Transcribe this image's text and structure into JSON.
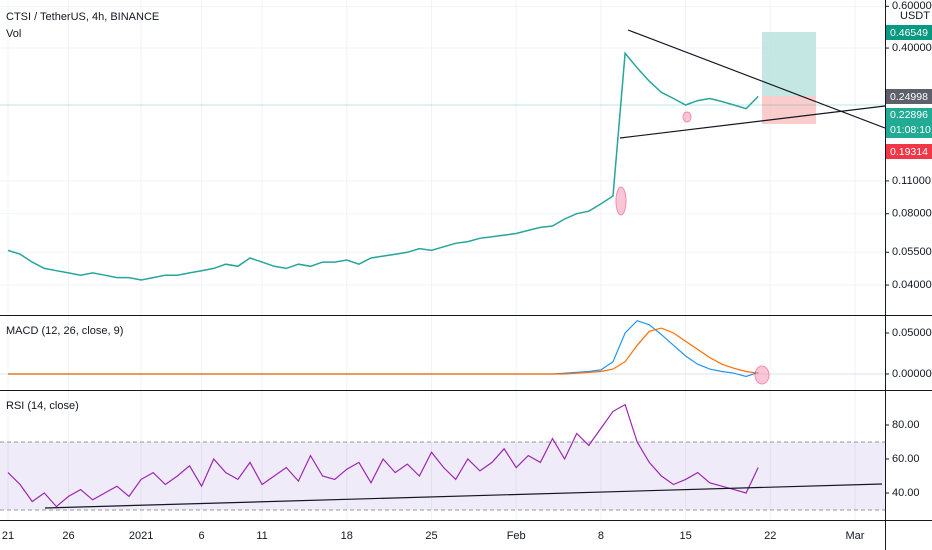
{
  "header": {
    "title": "CTSI / TetherUS, 4h, BINANCE",
    "volume": "Vol",
    "currency": "USDT"
  },
  "price_labels": {
    "target": "0.46549",
    "last": "0.24998",
    "current": "0.22896",
    "countdown": "01:08:10",
    "stop": "0.19314"
  },
  "chart_data": [
    {
      "type": "line",
      "log_scale": true,
      "grid": true,
      "ylim": [
        0.0299,
        0.638
      ],
      "yticks": [
        {
          "value": 0.6,
          "label": "0.60000"
        },
        {
          "value": 0.4,
          "label": "0.40000"
        },
        {
          "value": 0.11,
          "label": "0.11000"
        },
        {
          "value": 0.08,
          "label": "0.08000"
        },
        {
          "value": 0.055,
          "label": "0.05500"
        },
        {
          "value": 0.04,
          "label": "0.04000"
        }
      ],
      "x": [
        0,
        1,
        2,
        3,
        4,
        5,
        6,
        7,
        8,
        9,
        10,
        11,
        12,
        13,
        14,
        15,
        16,
        17,
        18,
        19,
        20,
        21,
        22,
        23,
        24,
        25,
        26,
        27,
        28,
        29,
        30,
        31,
        32,
        33,
        34,
        35,
        36,
        37,
        38,
        39,
        40,
        41,
        42,
        43,
        44,
        45,
        46,
        47,
        48,
        49,
        50,
        51,
        52,
        53,
        54,
        55,
        56,
        57,
        58,
        59,
        60,
        61,
        62
      ],
      "series": [
        {
          "color": "#26a69a",
          "values": [
            0.056,
            0.054,
            0.05,
            0.047,
            0.046,
            0.045,
            0.044,
            0.045,
            0.044,
            0.043,
            0.043,
            0.042,
            0.043,
            0.044,
            0.044,
            0.045,
            0.046,
            0.047,
            0.049,
            0.048,
            0.052,
            0.05,
            0.048,
            0.047,
            0.049,
            0.048,
            0.05,
            0.05,
            0.051,
            0.049,
            0.052,
            0.053,
            0.054,
            0.055,
            0.057,
            0.056,
            0.058,
            0.06,
            0.061,
            0.063,
            0.064,
            0.065,
            0.066,
            0.068,
            0.07,
            0.071,
            0.076,
            0.08,
            0.082,
            0.088,
            0.095,
            0.38,
            0.33,
            0.29,
            0.26,
            0.245,
            0.23,
            0.24,
            0.245,
            0.238,
            0.23,
            0.222,
            0.25
          ]
        }
      ]
    },
    {
      "type": "line",
      "title": "MACD (12, 26, close, 9)",
      "ylim": [
        -0.0195,
        0.0707
      ],
      "yticks": [
        {
          "value": 0.05,
          "label": "0.05000"
        },
        {
          "value": 0,
          "label": "0.00000"
        }
      ],
      "x": [
        0,
        1,
        2,
        3,
        4,
        5,
        6,
        7,
        8,
        9,
        10,
        11,
        12,
        13,
        14,
        15,
        16,
        17,
        18,
        19,
        20,
        21,
        22,
        23,
        24,
        25,
        26,
        27,
        28,
        29,
        30,
        31,
        32,
        33,
        34,
        35,
        36,
        37,
        38,
        39,
        40,
        41,
        42,
        43,
        44,
        45,
        46,
        47,
        48,
        49,
        50,
        51,
        52,
        53,
        54,
        55,
        56,
        57,
        58,
        59,
        60,
        61,
        62
      ],
      "series": [
        {
          "color": "#2196f3",
          "values": [
            0,
            0,
            0,
            0,
            0,
            0,
            0,
            0,
            0,
            0,
            0,
            0,
            0,
            0,
            0,
            0,
            0,
            0,
            0,
            0,
            0,
            0,
            0,
            0,
            0,
            0,
            0,
            0,
            0,
            0,
            0,
            0,
            0,
            0,
            0,
            0,
            0,
            0,
            0,
            0,
            0,
            0,
            0,
            0,
            0,
            0,
            0.001,
            0.002,
            0.003,
            0.005,
            0.015,
            0.05,
            0.065,
            0.06,
            0.048,
            0.035,
            0.022,
            0.012,
            0.006,
            0.003,
            0.001,
            -0.003,
            0.002
          ]
        },
        {
          "color": "#ff6d00",
          "values": [
            0,
            0,
            0,
            0,
            0,
            0,
            0,
            0,
            0,
            0,
            0,
            0,
            0,
            0,
            0,
            0,
            0,
            0,
            0,
            0,
            0,
            0,
            0,
            0,
            0,
            0,
            0,
            0,
            0,
            0,
            0,
            0,
            0,
            0,
            0,
            0,
            0,
            0,
            0,
            0,
            0,
            0,
            0,
            0,
            0,
            0,
            0,
            0.001,
            0.002,
            0.003,
            0.006,
            0.015,
            0.035,
            0.052,
            0.056,
            0.05,
            0.04,
            0.03,
            0.02,
            0.012,
            0.007,
            0.003,
            0.001
          ]
        }
      ]
    },
    {
      "type": "line",
      "title": "RSI (14, close)",
      "ylim": [
        24.1,
        100
      ],
      "band": [
        30,
        70
      ],
      "band_color": "#7e57c2",
      "yticks": [
        {
          "value": 80,
          "label": "80.00"
        },
        {
          "value": 60,
          "label": "60.00"
        },
        {
          "value": 40,
          "label": "40.00"
        }
      ],
      "xlim": [
        -0.66,
        72.48
      ],
      "xticks": [
        {
          "value": 0,
          "label": "21"
        },
        {
          "value": 5,
          "label": "26"
        },
        {
          "value": 11,
          "label": "2021"
        },
        {
          "value": 16,
          "label": "6"
        },
        {
          "value": 21,
          "label": "11"
        },
        {
          "value": 28,
          "label": "18"
        },
        {
          "value": 35,
          "label": "25"
        },
        {
          "value": 42,
          "label": "Feb"
        },
        {
          "value": 49,
          "label": "8"
        },
        {
          "value": 56,
          "label": "15"
        },
        {
          "value": 63,
          "label": "22"
        },
        {
          "value": 70,
          "label": "Mar"
        }
      ],
      "x": [
        0,
        1,
        2,
        3,
        4,
        5,
        6,
        7,
        8,
        9,
        10,
        11,
        12,
        13,
        14,
        15,
        16,
        17,
        18,
        19,
        20,
        21,
        22,
        23,
        24,
        25,
        26,
        27,
        28,
        29,
        30,
        31,
        32,
        33,
        34,
        35,
        36,
        37,
        38,
        39,
        40,
        41,
        42,
        43,
        44,
        45,
        46,
        47,
        48,
        49,
        50,
        51,
        52,
        53,
        54,
        55,
        56,
        57,
        58,
        59,
        60,
        61,
        62
      ],
      "series": [
        {
          "color": "#9c27b0",
          "values": [
            52,
            45,
            35,
            40,
            32,
            38,
            42,
            36,
            40,
            44,
            38,
            48,
            52,
            45,
            50,
            56,
            44,
            60,
            52,
            48,
            58,
            45,
            50,
            55,
            47,
            62,
            50,
            48,
            54,
            58,
            46,
            60,
            52,
            57,
            50,
            64,
            55,
            48,
            60,
            53,
            58,
            66,
            55,
            62,
            58,
            72,
            60,
            75,
            68,
            78,
            88,
            92,
            70,
            58,
            50,
            45,
            48,
            52,
            46,
            44,
            42,
            40,
            55
          ]
        }
      ]
    }
  ]
}
